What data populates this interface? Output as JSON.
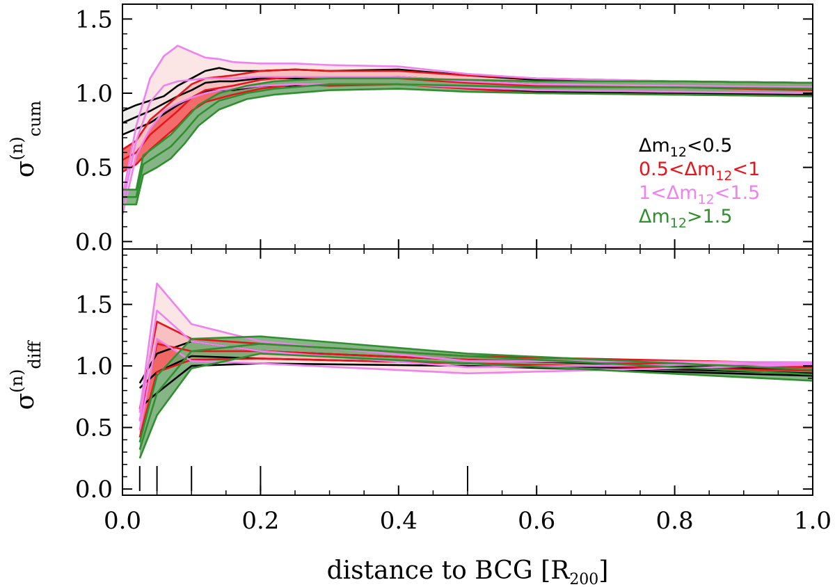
{
  "chart_data": [
    {
      "type": "line",
      "panel": "top",
      "title": "",
      "xlabel": "",
      "ylabel_main": "σ",
      "ylabel_sup": "(n)",
      "ylabel_sub": "cum",
      "xlim": [
        0,
        1.0
      ],
      "ylim": [
        -0.05,
        1.6
      ],
      "yticks": [
        0.0,
        0.5,
        1.0,
        1.5
      ],
      "ytick_labels": [
        "0.0",
        "0.5",
        "1.0",
        "1.5"
      ],
      "legend_position": "right",
      "series": [
        {
          "name": "Δm12<0.5",
          "color": "#000000",
          "fill": "#e8e8e6",
          "x": [
            0.0,
            0.02,
            0.04,
            0.06,
            0.08,
            0.1,
            0.12,
            0.14,
            0.16,
            0.2,
            0.25,
            0.3,
            0.4,
            0.5,
            0.6,
            0.8,
            1.0
          ],
          "upper": [
            0.88,
            0.92,
            0.95,
            0.98,
            1.05,
            1.1,
            1.15,
            1.17,
            1.15,
            1.15,
            1.16,
            1.15,
            1.16,
            1.12,
            1.09,
            1.08,
            1.07
          ],
          "median": [
            0.8,
            0.84,
            0.88,
            0.93,
            0.98,
            1.02,
            1.07,
            1.08,
            1.08,
            1.1,
            1.1,
            1.1,
            1.11,
            1.08,
            1.06,
            1.04,
            1.03
          ],
          "lower": [
            0.72,
            0.76,
            0.8,
            0.86,
            0.92,
            0.97,
            1.01,
            1.02,
            1.02,
            1.05,
            1.05,
            1.06,
            1.06,
            1.04,
            1.01,
            1.0,
            0.99
          ]
        },
        {
          "name": "0.5<Δm12<1",
          "color": "#e8141b",
          "fill": "#f03a3a",
          "x": [
            0.0,
            0.02,
            0.04,
            0.06,
            0.08,
            0.1,
            0.12,
            0.16,
            0.2,
            0.25,
            0.3,
            0.4,
            0.5,
            0.6,
            0.8,
            1.0
          ],
          "upper": [
            0.62,
            0.68,
            0.82,
            0.9,
            0.98,
            1.06,
            1.1,
            1.12,
            1.15,
            1.16,
            1.15,
            1.15,
            1.12,
            1.1,
            1.08,
            1.07
          ],
          "median": [
            0.55,
            0.6,
            0.72,
            0.8,
            0.88,
            0.97,
            1.02,
            1.05,
            1.09,
            1.11,
            1.1,
            1.1,
            1.07,
            1.05,
            1.04,
            1.02
          ],
          "lower": [
            0.47,
            0.52,
            0.62,
            0.7,
            0.78,
            0.88,
            0.94,
            0.99,
            1.03,
            1.06,
            1.05,
            1.06,
            1.03,
            1.0,
            0.99,
            0.98
          ]
        },
        {
          "name": "1<Δm12<1.5",
          "color": "#ee82ee",
          "fill": "#fadcdc",
          "x": [
            0.0,
            0.02,
            0.04,
            0.06,
            0.08,
            0.1,
            0.12,
            0.14,
            0.16,
            0.2,
            0.25,
            0.3,
            0.4,
            0.5,
            0.6,
            0.8,
            1.0
          ],
          "upper": [
            0.3,
            0.78,
            1.1,
            1.25,
            1.32,
            1.28,
            1.24,
            1.23,
            1.21,
            1.2,
            1.2,
            1.19,
            1.18,
            1.13,
            1.1,
            1.08,
            1.07
          ],
          "median": [
            0.25,
            0.68,
            0.94,
            1.05,
            1.08,
            1.09,
            1.1,
            1.1,
            1.1,
            1.11,
            1.11,
            1.11,
            1.11,
            1.08,
            1.06,
            1.05,
            1.04
          ],
          "lower": [
            0.18,
            0.58,
            0.76,
            0.88,
            0.93,
            0.97,
            1.0,
            1.02,
            1.03,
            1.05,
            1.06,
            1.06,
            1.06,
            1.04,
            1.02,
            1.01,
            1.0
          ]
        },
        {
          "name": "Δm12>1.5",
          "color": "#2f8f2f",
          "fill": "#70a870",
          "x": [
            0.0,
            0.02,
            0.03,
            0.05,
            0.07,
            0.09,
            0.11,
            0.14,
            0.18,
            0.22,
            0.3,
            0.4,
            0.5,
            0.6,
            0.8,
            1.0
          ],
          "upper": [
            0.35,
            0.35,
            0.58,
            0.65,
            0.72,
            0.82,
            0.92,
            1.0,
            1.05,
            1.08,
            1.1,
            1.1,
            1.09,
            1.08,
            1.08,
            1.07
          ],
          "median": [
            0.3,
            0.3,
            0.52,
            0.58,
            0.64,
            0.74,
            0.85,
            0.95,
            1.0,
            1.03,
            1.06,
            1.06,
            1.05,
            1.04,
            1.04,
            1.03
          ],
          "lower": [
            0.25,
            0.25,
            0.45,
            0.5,
            0.56,
            0.66,
            0.78,
            0.89,
            0.96,
            0.99,
            1.02,
            1.03,
            1.01,
            1.0,
            0.99,
            0.98
          ]
        }
      ]
    },
    {
      "type": "line",
      "panel": "bottom",
      "title": "",
      "xlabel": "distance to BCG",
      "xlabel_unit_main": "R",
      "xlabel_unit_sub": "200",
      "ylabel_main": "σ",
      "ylabel_sup": "(n)",
      "ylabel_sub": "diff",
      "xlim": [
        0,
        1.0
      ],
      "ylim": [
        -0.05,
        1.95
      ],
      "xticks": [
        0.0,
        0.2,
        0.4,
        0.6,
        0.8,
        1.0
      ],
      "xtick_labels": [
        "0.0",
        "0.2",
        "0.4",
        "0.6",
        "0.8",
        "1.0"
      ],
      "yticks": [
        0.0,
        0.5,
        1.0,
        1.5
      ],
      "ytick_labels": [
        "0.0",
        "0.5",
        "1.0",
        "1.5"
      ],
      "bin_markers": [
        0.025,
        0.05,
        0.1,
        0.2,
        0.5
      ],
      "series": [
        {
          "name": "Δm12<0.5",
          "color": "#000000",
          "fill": "#e8e8e6",
          "x": [
            0.025,
            0.05,
            0.1,
            0.2,
            0.5,
            1.0
          ],
          "upper": [
            0.86,
            1.1,
            1.2,
            1.12,
            1.05,
            0.97
          ],
          "median": [
            0.82,
            0.95,
            1.08,
            1.06,
            1.02,
            0.94
          ],
          "lower": [
            0.66,
            0.78,
            1.0,
            1.02,
            1.0,
            0.92
          ]
        },
        {
          "name": "0.5<Δm12<1",
          "color": "#e8141b",
          "fill": "#f03a3a",
          "x": [
            0.025,
            0.05,
            0.1,
            0.2,
            0.5,
            1.0
          ],
          "upper": [
            0.65,
            1.36,
            1.22,
            1.18,
            1.08,
            1.02
          ],
          "median": [
            0.56,
            1.18,
            1.12,
            1.12,
            1.05,
            0.99
          ],
          "lower": [
            0.42,
            0.95,
            1.05,
            1.06,
            1.02,
            0.96
          ]
        },
        {
          "name": "1<Δm12<1.5",
          "color": "#ee82ee",
          "fill": "#fadcdc",
          "x": [
            0.025,
            0.05,
            0.1,
            0.2,
            0.5,
            1.0
          ],
          "upper": [
            0.62,
            1.67,
            1.34,
            1.2,
            1.04,
            1.03
          ],
          "median": [
            0.55,
            1.45,
            1.2,
            1.12,
            0.99,
            1.02
          ],
          "lower": [
            0.48,
            1.22,
            1.04,
            1.02,
            0.94,
            1.01
          ]
        },
        {
          "name": "Δm12>1.5",
          "color": "#2f8f2f",
          "fill": "#70a870",
          "x": [
            0.025,
            0.05,
            0.1,
            0.2,
            0.5,
            1.0
          ],
          "upper": [
            0.38,
            0.92,
            1.22,
            1.24,
            1.1,
            0.97
          ],
          "median": [
            0.32,
            0.78,
            1.12,
            1.18,
            1.08,
            0.93
          ],
          "lower": [
            0.25,
            0.6,
            0.98,
            1.1,
            1.02,
            0.88
          ]
        }
      ]
    }
  ],
  "legend": [
    {
      "prefix": "",
      "delta": "Δm",
      "sub": "12",
      "suffix": "<0.5",
      "color": "#000000"
    },
    {
      "prefix": "0.5<",
      "delta": "Δm",
      "sub": "12",
      "suffix": "<1",
      "color": "#e8141b"
    },
    {
      "prefix": "1<",
      "delta": "Δm",
      "sub": "12",
      "suffix": "<1.5",
      "color": "#ee82ee"
    },
    {
      "prefix": "",
      "delta": "Δm",
      "sub": "12",
      "suffix": ">1.5",
      "color": "#2f8f2f"
    }
  ]
}
